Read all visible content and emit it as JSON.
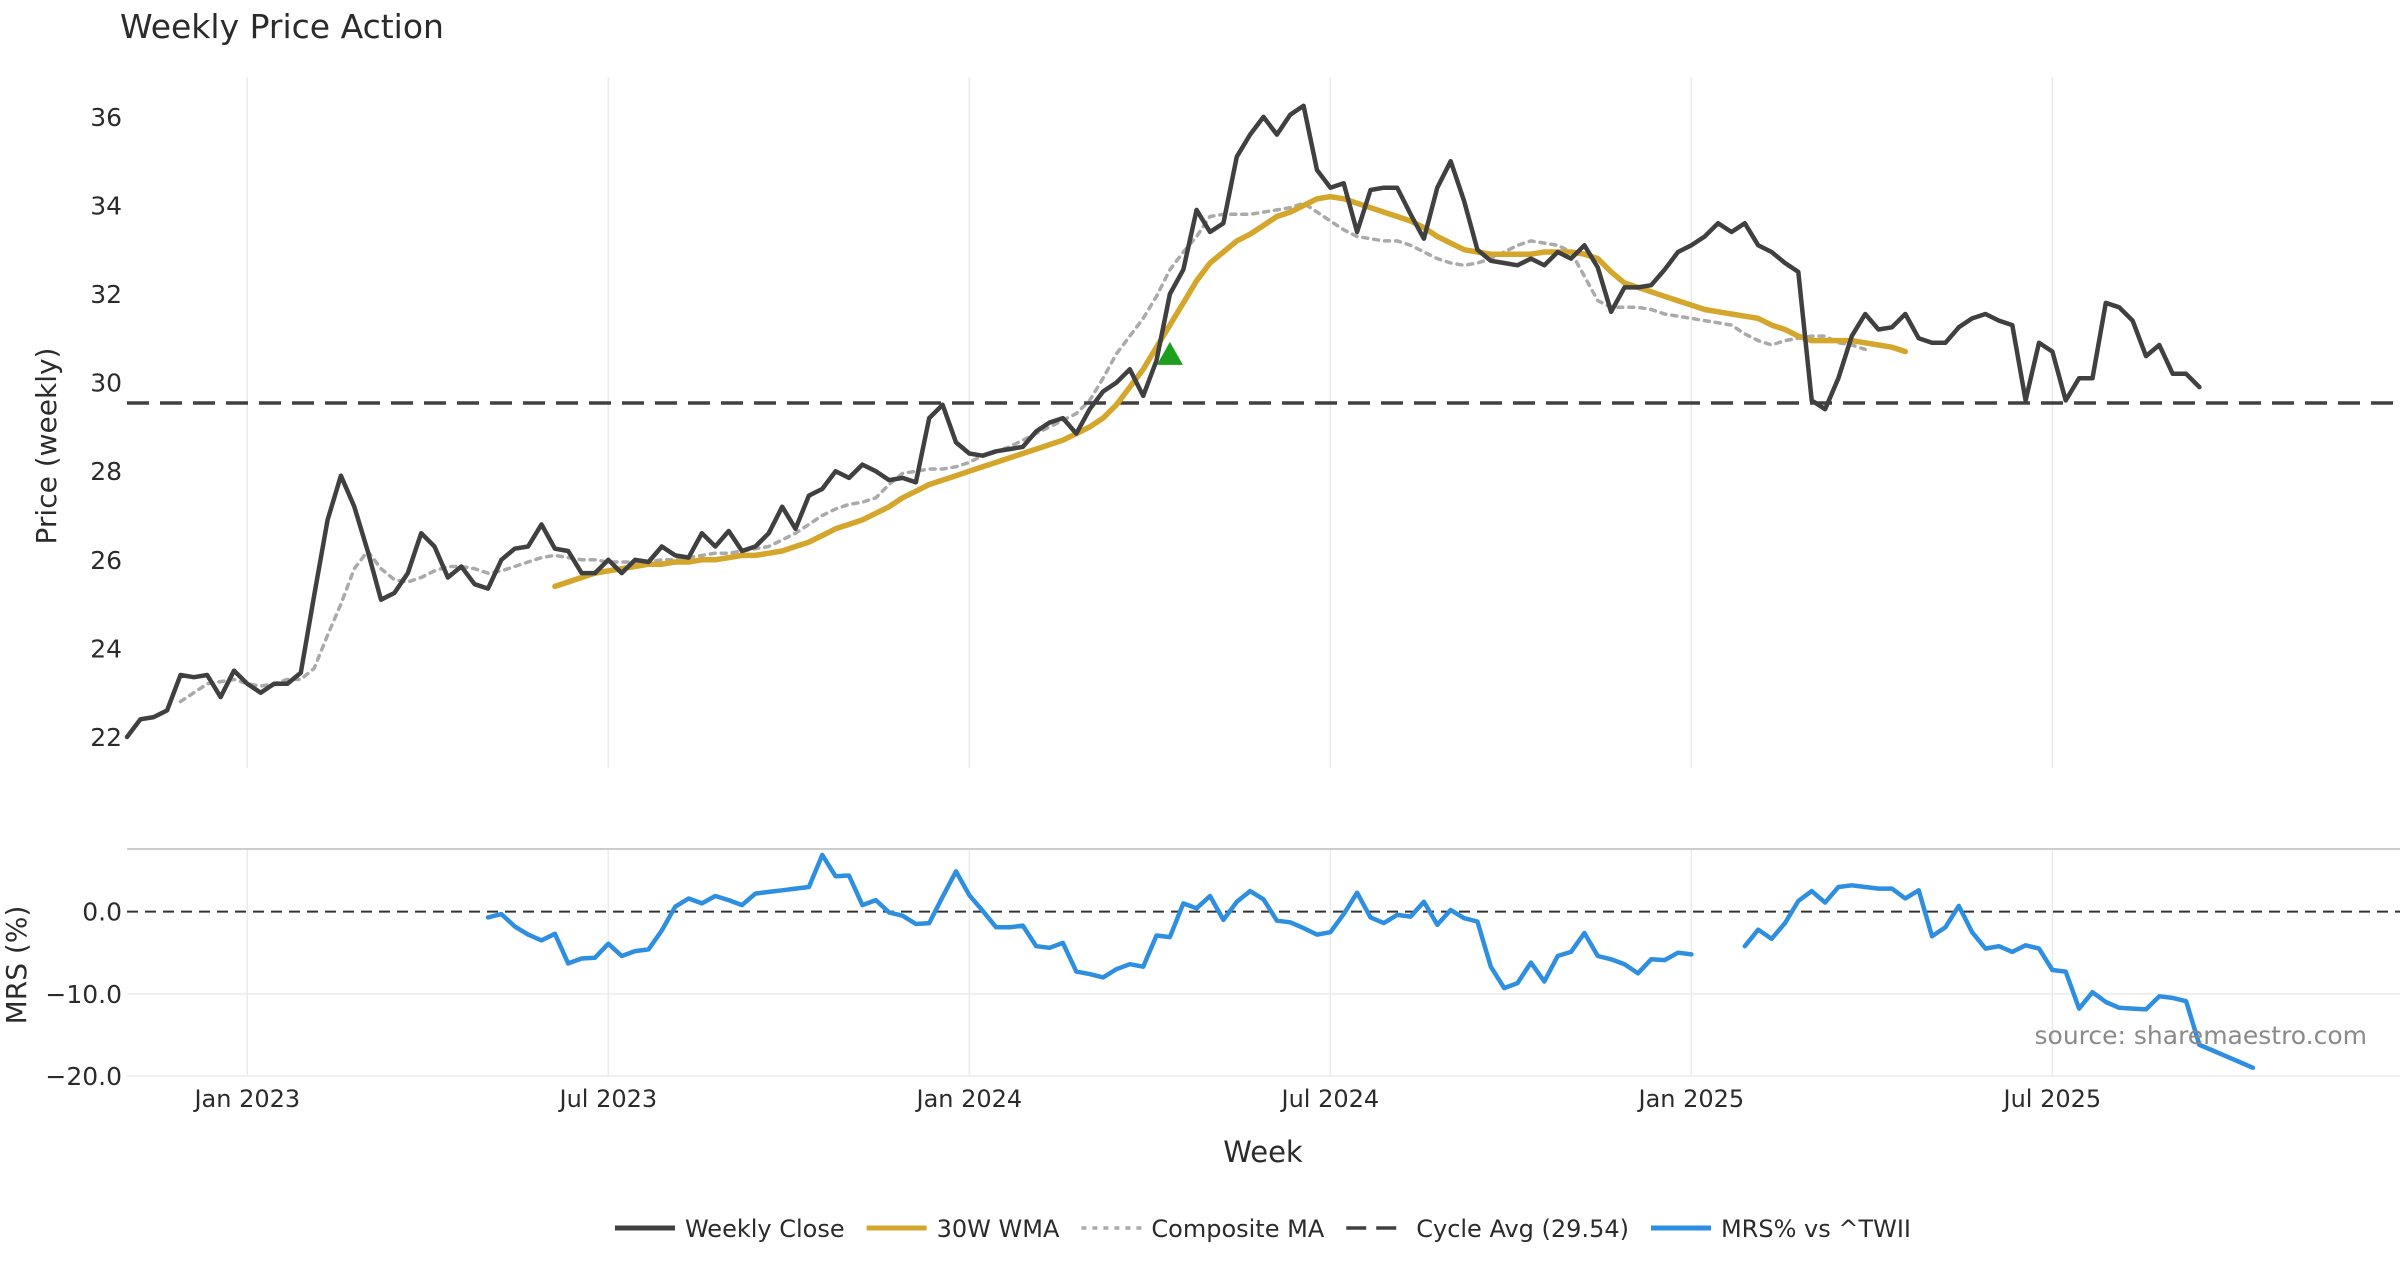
{
  "chart_data": [
    {
      "panel": "price",
      "type": "line",
      "title": "Weekly Price Action",
      "xlabel": "Week",
      "ylabel": "Price (weekly)",
      "ylim": [
        21.3,
        36.9
      ],
      "yticks": [
        22,
        24,
        26,
        28,
        30,
        32,
        34,
        36
      ],
      "x_index_range": [
        0,
        170
      ],
      "grid": "x-only",
      "series": [
        {
          "name": "Weekly Close",
          "color": "#404040",
          "start_index": 0,
          "values": [
            22.0,
            22.4,
            22.45,
            22.6,
            23.4,
            23.35,
            23.4,
            22.9,
            23.5,
            23.2,
            23.0,
            23.2,
            23.2,
            23.45,
            25.2,
            26.9,
            27.9,
            27.2,
            26.2,
            25.1,
            25.25,
            25.7,
            26.6,
            26.3,
            25.6,
            25.85,
            25.45,
            25.35,
            26.0,
            26.25,
            26.3,
            26.8,
            26.25,
            26.2,
            25.7,
            25.7,
            26.0,
            25.7,
            26.0,
            25.95,
            26.3,
            26.1,
            26.05,
            26.6,
            26.3,
            26.65,
            26.2,
            26.3,
            26.6,
            27.2,
            26.7,
            27.45,
            27.6,
            28.0,
            27.85,
            28.15,
            28.0,
            27.8,
            27.85,
            27.75,
            29.2,
            29.5,
            28.65,
            28.4,
            28.35,
            28.45,
            28.5,
            28.55,
            28.9,
            29.1,
            29.2,
            28.85,
            29.4,
            29.8,
            30.0,
            30.3,
            29.7,
            30.5,
            32.0,
            32.55,
            33.9,
            33.4,
            33.6,
            35.1,
            35.6,
            36.0,
            35.6,
            36.05,
            36.25,
            34.8,
            34.4,
            34.5,
            33.4,
            34.35,
            34.4,
            34.4,
            33.8,
            33.25,
            34.4,
            35.0,
            34.1,
            33.0,
            32.75,
            32.7,
            32.65,
            32.8,
            32.65,
            32.95,
            32.8,
            33.1,
            32.6,
            31.6,
            32.15,
            32.15,
            32.2,
            32.55,
            32.95,
            33.1,
            33.3,
            33.6,
            33.4,
            33.6,
            33.1,
            32.95,
            32.7,
            32.5,
            29.6,
            29.4,
            30.1,
            31.05,
            31.55,
            31.2,
            31.25,
            31.55,
            31.0,
            30.9,
            30.9,
            31.25,
            31.45,
            31.55,
            31.4,
            31.3,
            29.6,
            30.9,
            30.7,
            29.6,
            30.1,
            30.1,
            31.8,
            31.7,
            31.4,
            30.6,
            30.85,
            30.2,
            30.2,
            29.9
          ]
        },
        {
          "name": "30W WMA",
          "color": "#D4A72C",
          "start_index": 32,
          "values": [
            25.4,
            25.5,
            25.6,
            25.7,
            25.75,
            25.8,
            25.85,
            25.9,
            25.9,
            25.95,
            25.95,
            26.0,
            26.0,
            26.05,
            26.1,
            26.1,
            26.15,
            26.2,
            26.3,
            26.4,
            26.55,
            26.7,
            26.8,
            26.9,
            27.05,
            27.2,
            27.4,
            27.55,
            27.7,
            27.8,
            27.9,
            28.0,
            28.1,
            28.2,
            28.3,
            28.4,
            28.5,
            28.6,
            28.7,
            28.85,
            29.0,
            29.2,
            29.5,
            29.9,
            30.3,
            30.8,
            31.3,
            31.8,
            32.3,
            32.7,
            32.95,
            33.2,
            33.35,
            33.55,
            33.75,
            33.85,
            34.0,
            34.15,
            34.2,
            34.15,
            34.05,
            33.95,
            33.85,
            33.75,
            33.65,
            33.5,
            33.3,
            33.15,
            33.0,
            32.95,
            32.9,
            32.9,
            32.9,
            32.9,
            32.95,
            32.95,
            32.95,
            32.9,
            32.8,
            32.5,
            32.25,
            32.15,
            32.05,
            31.95,
            31.85,
            31.75,
            31.65,
            31.6,
            31.55,
            31.5,
            31.45,
            31.3,
            31.2,
            31.05,
            30.95,
            30.95,
            30.95,
            30.95,
            30.9,
            30.85,
            30.8,
            30.7
          ]
        },
        {
          "name": "Composite MA",
          "color": "#AAAAAA",
          "start_index": 4,
          "values": [
            22.8,
            23.0,
            23.2,
            23.25,
            23.3,
            23.2,
            23.15,
            23.2,
            23.3,
            23.3,
            23.55,
            24.3,
            25.0,
            25.8,
            26.2,
            25.8,
            25.55,
            25.5,
            25.6,
            25.75,
            25.85,
            25.85,
            25.8,
            25.7,
            25.75,
            25.85,
            25.95,
            26.05,
            26.1,
            26.05,
            26.0,
            26.0,
            25.95,
            25.95,
            25.95,
            25.95,
            26.0,
            26.0,
            26.05,
            26.1,
            26.15,
            26.15,
            26.2,
            26.25,
            26.3,
            26.45,
            26.6,
            26.8,
            27.0,
            27.15,
            27.25,
            27.3,
            27.4,
            27.7,
            27.95,
            28.0,
            28.05,
            28.05,
            28.1,
            28.2,
            28.35,
            28.45,
            28.55,
            28.7,
            28.85,
            29.0,
            29.15,
            29.3,
            29.6,
            30.1,
            30.65,
            31.05,
            31.45,
            31.95,
            32.55,
            32.95,
            33.3,
            33.75,
            33.8,
            33.8,
            33.8,
            33.85,
            33.9,
            33.95,
            34.05,
            33.85,
            33.65,
            33.45,
            33.3,
            33.25,
            33.2,
            33.2,
            33.1,
            32.95,
            32.8,
            32.7,
            32.65,
            32.7,
            32.8,
            32.95,
            33.1,
            33.2,
            33.15,
            33.1,
            32.95,
            32.4,
            31.85,
            31.7,
            31.7,
            31.7,
            31.65,
            31.55,
            31.5,
            31.45,
            31.4,
            31.35,
            31.3,
            31.1,
            30.95,
            30.85,
            30.95,
            31.0,
            31.05,
            31.05,
            30.9,
            30.85,
            30.75
          ]
        },
        {
          "name": "Cycle Avg (29.54)",
          "color": "#404040",
          "style": "dashed",
          "value": 29.54
        }
      ],
      "annotations": [
        {
          "type": "marker",
          "shape": "triangle-up",
          "color": "#1E9E1E",
          "index": 78,
          "value": 30.65
        }
      ]
    },
    {
      "panel": "mrs",
      "type": "line",
      "ylabel": "MRS (%)",
      "ylim": [
        -20,
        7.5
      ],
      "yticks": [
        0,
        -10,
        -20
      ],
      "yticklabels": [
        "0.0",
        "−10.0",
        "−20.0"
      ],
      "zero_line": "dashed",
      "x_index_range": [
        0,
        170
      ],
      "xtick_indices": [
        9,
        36,
        63,
        90,
        117,
        144
      ],
      "xticklabels": [
        "Jan 2023",
        "Jul 2023",
        "Jan 2024",
        "Jul 2024",
        "Jan 2025",
        "Jul 2025"
      ],
      "series": [
        {
          "name": "MRS% vs ^TWII",
          "color": "#2E8FE0",
          "start_index": 27,
          "values": [
            -0.7,
            -0.3,
            -1.8,
            -2.8,
            -3.5,
            -2.7,
            -6.3,
            -5.7,
            -5.6,
            -3.9,
            -5.4,
            -4.8,
            -4.6,
            -2.3,
            0.6,
            1.6,
            1.0,
            1.9,
            1.4,
            0.8,
            2.2,
            2.4,
            2.6,
            2.8,
            3.0,
            6.9,
            4.3,
            4.4,
            0.8,
            1.4,
            -0.1,
            -0.5,
            -1.5,
            -1.4,
            1.8,
            4.9,
            2.0,
            0.1,
            -1.9,
            -1.9,
            -1.7,
            -4.2,
            -4.4,
            -3.8,
            -7.3,
            -7.6,
            -8.0,
            -7.0,
            -6.4,
            -6.7,
            -2.9,
            -3.1,
            1.0,
            0.4,
            1.9,
            -1.0,
            1.2,
            2.5,
            1.5,
            -1.1,
            -1.3,
            -2.0,
            -2.8,
            -2.5,
            -0.3,
            2.3,
            -0.7,
            -1.4,
            -0.4,
            -0.6,
            1.2,
            -1.6,
            0.2,
            -0.8,
            -1.2,
            -6.7,
            -9.3,
            -8.7,
            -6.2,
            -8.5,
            -5.4,
            -4.9,
            -2.6,
            -5.4,
            -5.8,
            -6.4,
            -7.5,
            -5.8,
            -5.9,
            -5.0,
            -5.2,
            null,
            null,
            null,
            -4.2,
            -2.2,
            -3.3,
            -1.4,
            1.3,
            2.5,
            1.1,
            3.0,
            3.2,
            3.0,
            2.8,
            2.8,
            1.6,
            2.6,
            -3.0,
            -1.9,
            0.7,
            -2.5,
            -4.5,
            -4.2,
            -4.9,
            -4.1,
            -4.5,
            -7.1,
            -7.3,
            -11.8,
            -9.8,
            -11.0,
            -11.7,
            -11.8,
            -11.9,
            -10.3,
            -10.5,
            -10.9,
            -16.2,
            -16.9,
            -17.6,
            -18.3,
            -19.0
          ]
        }
      ],
      "annotations": [
        {
          "type": "text",
          "text": "source: sharemaestro.com",
          "position": "bottom-right"
        }
      ]
    }
  ],
  "legend": {
    "position": "bottom-center",
    "items": [
      {
        "label": "Weekly Close",
        "color": "#404040",
        "style": "solid"
      },
      {
        "label": "30W WMA",
        "color": "#D4A72C",
        "style": "solid"
      },
      {
        "label": "Composite MA",
        "color": "#AAAAAA",
        "style": "dotted"
      },
      {
        "label": "Cycle Avg (29.54)",
        "color": "#404040",
        "style": "dashed"
      },
      {
        "label": "MRS% vs ^TWII",
        "color": "#2E8FE0",
        "style": "solid"
      }
    ]
  }
}
